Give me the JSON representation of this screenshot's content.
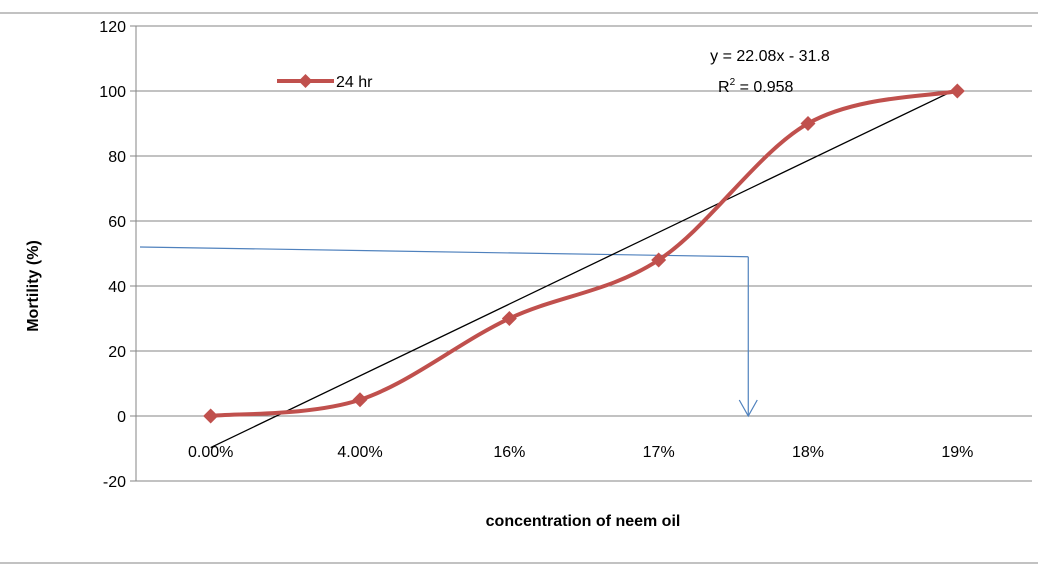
{
  "chart_data": {
    "type": "line",
    "categories": [
      "0.00%",
      "4.00%",
      "16%",
      "17%",
      "18%",
      "19%"
    ],
    "series": [
      {
        "name": "24 hr",
        "values": [
          0,
          5,
          30,
          48,
          90,
          100
        ],
        "color": "#c0504d",
        "marker": "diamond",
        "smoothed": true
      }
    ],
    "trendline": {
      "type": "linear",
      "slope": 22.08,
      "intercept": -31.8,
      "color": "#000000"
    },
    "equation_text": "y = 22.08x - 31.8",
    "r2_prefix": "R",
    "r2_sup": "2",
    "r2_value": " = 0.958",
    "reference": {
      "y": 52,
      "x": 4.6,
      "color": "#4f81bd"
    },
    "xlabel": "concentration  of neem oil",
    "ylabel": "Mortility (%)",
    "ylim": [
      -20,
      120
    ],
    "yticks": [
      -20,
      0,
      20,
      40,
      60,
      80,
      100,
      120
    ],
    "grid": true,
    "legend_position": "top-left"
  }
}
